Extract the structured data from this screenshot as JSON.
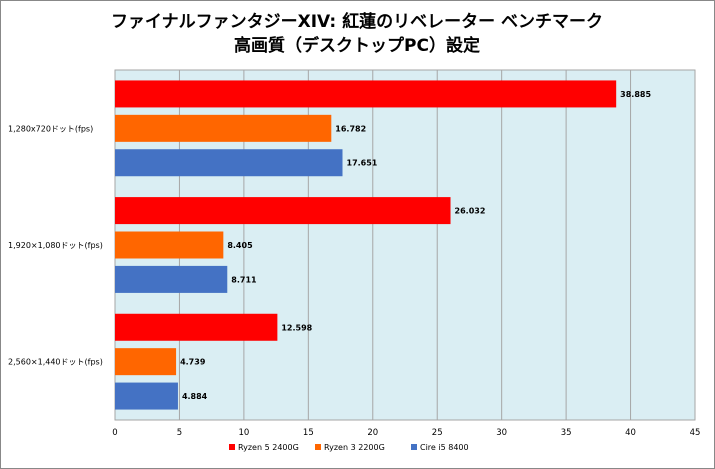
{
  "chart_data": {
    "type": "bar",
    "orientation": "horizontal",
    "title": [
      "ファイナルファンタジーXIV: 紅蓮のリベレーター ベンチマーク",
      "高画質（デスクトップPC）設定"
    ],
    "categories": [
      "1,280x720ドット(fps)",
      "1,920×1,080ドット(fps)",
      "2,560×1,440ドット(fps)"
    ],
    "series": [
      {
        "name": "Ryzen 5 2400G",
        "color": "#ff0000",
        "values": [
          38.885,
          26.032,
          12.598
        ],
        "labels": [
          "38.885",
          "26.032",
          "12.598"
        ]
      },
      {
        "name": "Ryzen 3 2200G",
        "color": "#ff6600",
        "values": [
          16.782,
          8.405,
          4.739
        ],
        "labels": [
          "16.782",
          "8.405",
          "4.739"
        ]
      },
      {
        "name": "Cire i5 8400",
        "color": "#4472c4",
        "values": [
          17.651,
          8.711,
          4.884
        ],
        "labels": [
          "17.651",
          "8.711",
          "4.884"
        ]
      }
    ],
    "xlim": [
      0,
      45
    ],
    "xticks": [
      "0",
      "5",
      "10",
      "15",
      "20",
      "25",
      "30",
      "35",
      "40",
      "45"
    ],
    "grid": true,
    "legend": "bottom",
    "plot_bg": "#daeef3",
    "grid_color": "#a6a6a6"
  }
}
